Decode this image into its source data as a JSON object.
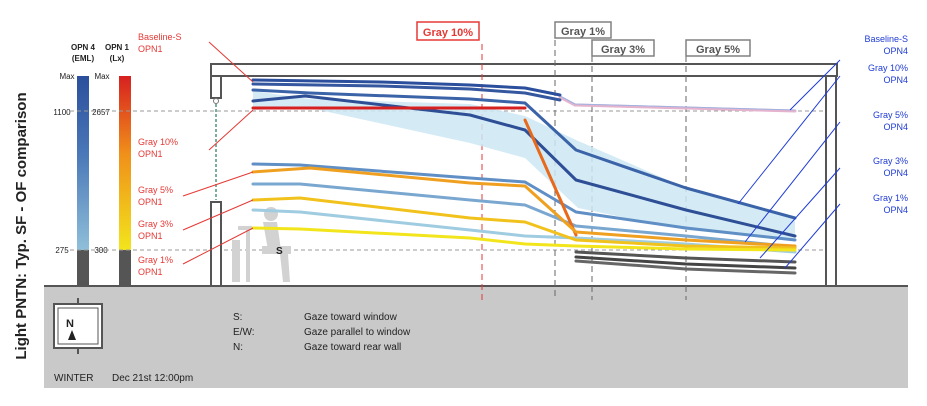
{
  "side_title": "Light PNTN: Typ. SF - OF comparison",
  "scales": {
    "opn4": {
      "header": [
        "OPN 4",
        "(EML)"
      ],
      "max_label": "Max",
      "mid_label": "1100",
      "low_label": "275"
    },
    "opn1": {
      "header": [
        "OPN 1",
        "(Lx)"
      ],
      "max_label": "Max",
      "mid_label": "2657",
      "low_label": "300"
    }
  },
  "partitions": [
    {
      "label": "Gray 10%",
      "color": "#e53935"
    },
    {
      "label": "Gray 1%",
      "color": "#808080"
    },
    {
      "label": "Gray 3%",
      "color": "#808080"
    },
    {
      "label": "Gray 5%",
      "color": "#808080"
    }
  ],
  "left_callouts": [
    {
      "lines": [
        "Baseline-S",
        "OPN1"
      ],
      "color": "#e53935"
    },
    {
      "lines": [
        "Gray 10%",
        "OPN1"
      ],
      "color": "#e53935"
    },
    {
      "lines": [
        "Gray 5%",
        "OPN1"
      ],
      "color": "#e53935"
    },
    {
      "lines": [
        "Gray 3%",
        "OPN1"
      ],
      "color": "#e53935"
    },
    {
      "lines": [
        "Gray 1%",
        "OPN1"
      ],
      "color": "#e53935"
    }
  ],
  "right_callouts": [
    {
      "lines": [
        "Baseline-S",
        "OPN4"
      ],
      "color": "#1f3bd6"
    },
    {
      "lines": [
        "Gray 10%",
        "OPN4"
      ],
      "color": "#1f3bd6"
    },
    {
      "lines": [
        "Gray 5%",
        "OPN4"
      ],
      "color": "#1f3bd6"
    },
    {
      "lines": [
        "Gray 3%",
        "OPN4"
      ],
      "color": "#1f3bd6"
    },
    {
      "lines": [
        "Gray 1%",
        "OPN4"
      ],
      "color": "#1f3bd6"
    }
  ],
  "seat_label": "S",
  "compass_label": "N",
  "legend": [
    {
      "key": "S:",
      "text": "Gaze toward window"
    },
    {
      "key": "E/W:",
      "text": "Gaze parallel to window"
    },
    {
      "key": "N:",
      "text": "Gaze toward rear wall"
    }
  ],
  "season": "WINTER",
  "datetime": "Dec 21st 12:00pm",
  "colors": {
    "opn4_dark": "#2b4f9c",
    "opn4_mid": "#5b86bd",
    "opn4_light": "#8fbfd9",
    "opn1_red": "#d72020",
    "opn1_orange": "#f0901a",
    "opn1_yellow": "#f2e51c",
    "band_fill": "#cde8f4",
    "ground": "#c9c9c9"
  }
}
